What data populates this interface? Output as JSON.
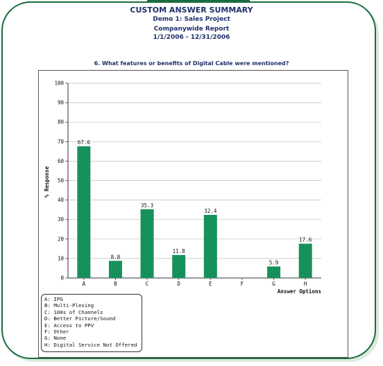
{
  "header": {
    "title": "CUSTOM ANSWER SUMMARY",
    "project": "Demo 1: Sales Project",
    "report": "Companywide Report",
    "dates": "1/1/2006 - 12/31/2006"
  },
  "question": "6. What features or benefits of Digital Cable were mentioned?",
  "colors": {
    "bar": "#17915b",
    "frame": "#1a6b3e",
    "header_text": "#1f2f6b"
  },
  "chart_data": {
    "type": "bar",
    "categories": [
      "A",
      "B",
      "C",
      "D",
      "E",
      "F",
      "G",
      "H"
    ],
    "values": [
      67.6,
      8.8,
      35.3,
      11.8,
      32.4,
      0,
      5.9,
      17.6
    ],
    "data_labels": [
      "67.6",
      "8.8",
      "35.3",
      "11.8",
      "32.4",
      "",
      "5.9",
      "17.6"
    ],
    "title": "",
    "xlabel": "Answer Options",
    "ylabel": "% Response",
    "ylim": [
      0,
      100
    ],
    "yticks": [
      "0",
      "10",
      "20",
      "30",
      "40",
      "50",
      "60",
      "70",
      "80",
      "90",
      "100"
    ],
    "grid": true,
    "legend_position": "bottom-left"
  },
  "legend": {
    "items": [
      "A: IPG",
      "B: Multi-Plexing",
      "C: 100s of Channels",
      "D: Better Picture/Sound",
      "E: Access to PPV",
      "F: Other",
      "G: None",
      "H: Digital Service Not Offered"
    ]
  }
}
